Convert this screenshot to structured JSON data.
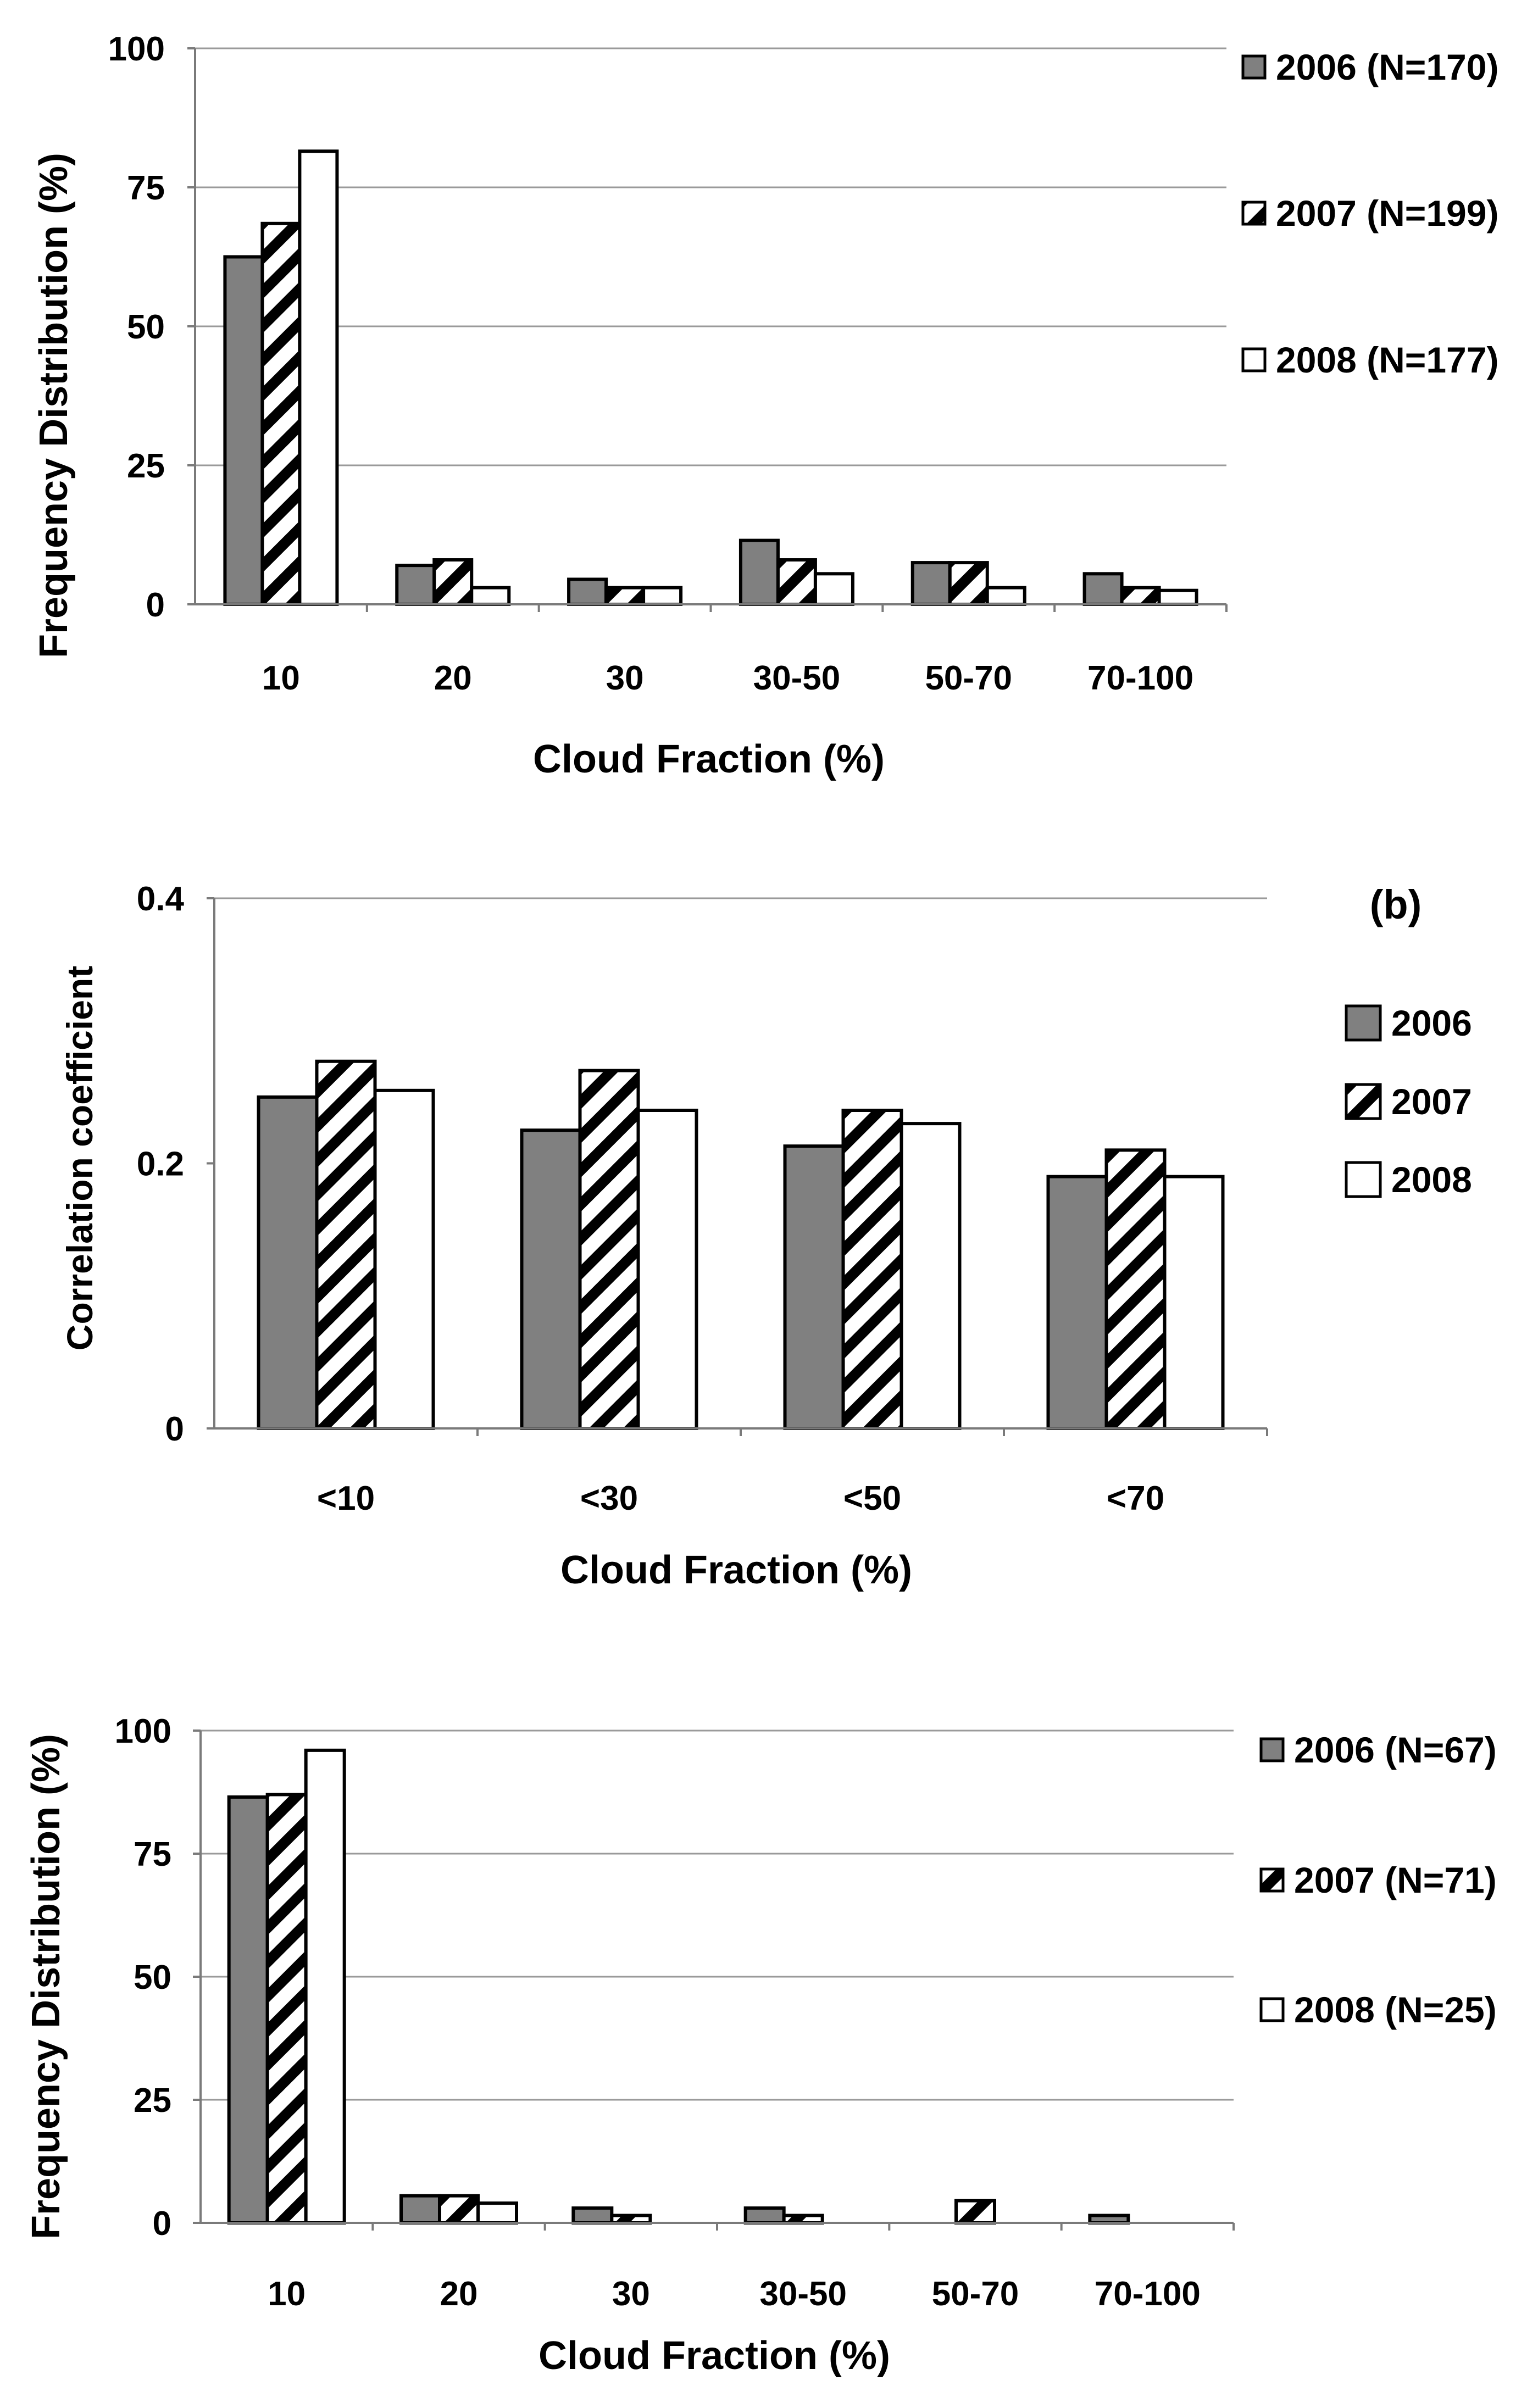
{
  "colors": {
    "s2006": "#808080",
    "s2008": "#ffffff",
    "hatch": "#000000",
    "grid": "#9a9a9a"
  },
  "chart_data": [
    {
      "id": "a",
      "type": "bar",
      "panel_label": "",
      "title": "",
      "xlabel": "Cloud Fraction (%)",
      "ylabel": "Frequency Distribution (%)",
      "categories": [
        "10",
        "20",
        "30",
        "30-50",
        "50-70",
        "70-100"
      ],
      "ylim": [
        0,
        100
      ],
      "yticks": [
        "0",
        "25",
        "50",
        "75",
        "100"
      ],
      "grid": true,
      "legend_position": "right",
      "series": [
        {
          "name": "2006 (N=170)",
          "pattern": "solid-gray",
          "values": [
            62.5,
            7,
            4.5,
            11.5,
            7.5,
            5.5
          ]
        },
        {
          "name": "2007 (N=199)",
          "pattern": "hatched",
          "values": [
            68.5,
            8,
            3,
            8,
            7.5,
            3
          ]
        },
        {
          "name": "2008 (N=177)",
          "pattern": "white",
          "values": [
            81.5,
            3,
            3,
            5.5,
            3,
            2.5
          ]
        }
      ]
    },
    {
      "id": "b",
      "type": "bar",
      "panel_label": "(b)",
      "title": "",
      "xlabel": "Cloud Fraction (%)",
      "ylabel": "Correlation coefficient",
      "categories": [
        "<10",
        "<30",
        "<50",
        "<70"
      ],
      "ylim": [
        0,
        0.4
      ],
      "yticks": [
        "0",
        "0.2",
        "0.4"
      ],
      "grid": false,
      "legend_position": "right",
      "series": [
        {
          "name": "2006",
          "pattern": "solid-gray",
          "values": [
            0.25,
            0.225,
            0.213,
            0.19
          ]
        },
        {
          "name": "2007",
          "pattern": "hatched",
          "values": [
            0.277,
            0.27,
            0.24,
            0.21
          ]
        },
        {
          "name": "2008",
          "pattern": "white",
          "values": [
            0.255,
            0.24,
            0.23,
            0.19
          ]
        }
      ]
    },
    {
      "id": "c",
      "type": "bar",
      "panel_label": "",
      "title": "",
      "xlabel": "Cloud Fraction (%)",
      "ylabel": "Frequency Distribution (%)",
      "categories": [
        "10",
        "20",
        "30",
        "30-50",
        "50-70",
        "70-100"
      ],
      "ylim": [
        0,
        100
      ],
      "yticks": [
        "0",
        "25",
        "50",
        "75",
        "100"
      ],
      "grid": true,
      "legend_position": "right",
      "series": [
        {
          "name": "2006 (N=67)",
          "pattern": "solid-gray",
          "values": [
            86.5,
            5.5,
            3,
            3,
            0,
            1.5
          ]
        },
        {
          "name": "2007 (N=71)",
          "pattern": "hatched",
          "values": [
            87,
            5.5,
            1.5,
            1.5,
            4.5,
            0
          ]
        },
        {
          "name": "2008 (N=25)",
          "pattern": "white",
          "values": [
            96,
            4,
            0,
            0,
            0,
            0
          ]
        }
      ]
    }
  ]
}
